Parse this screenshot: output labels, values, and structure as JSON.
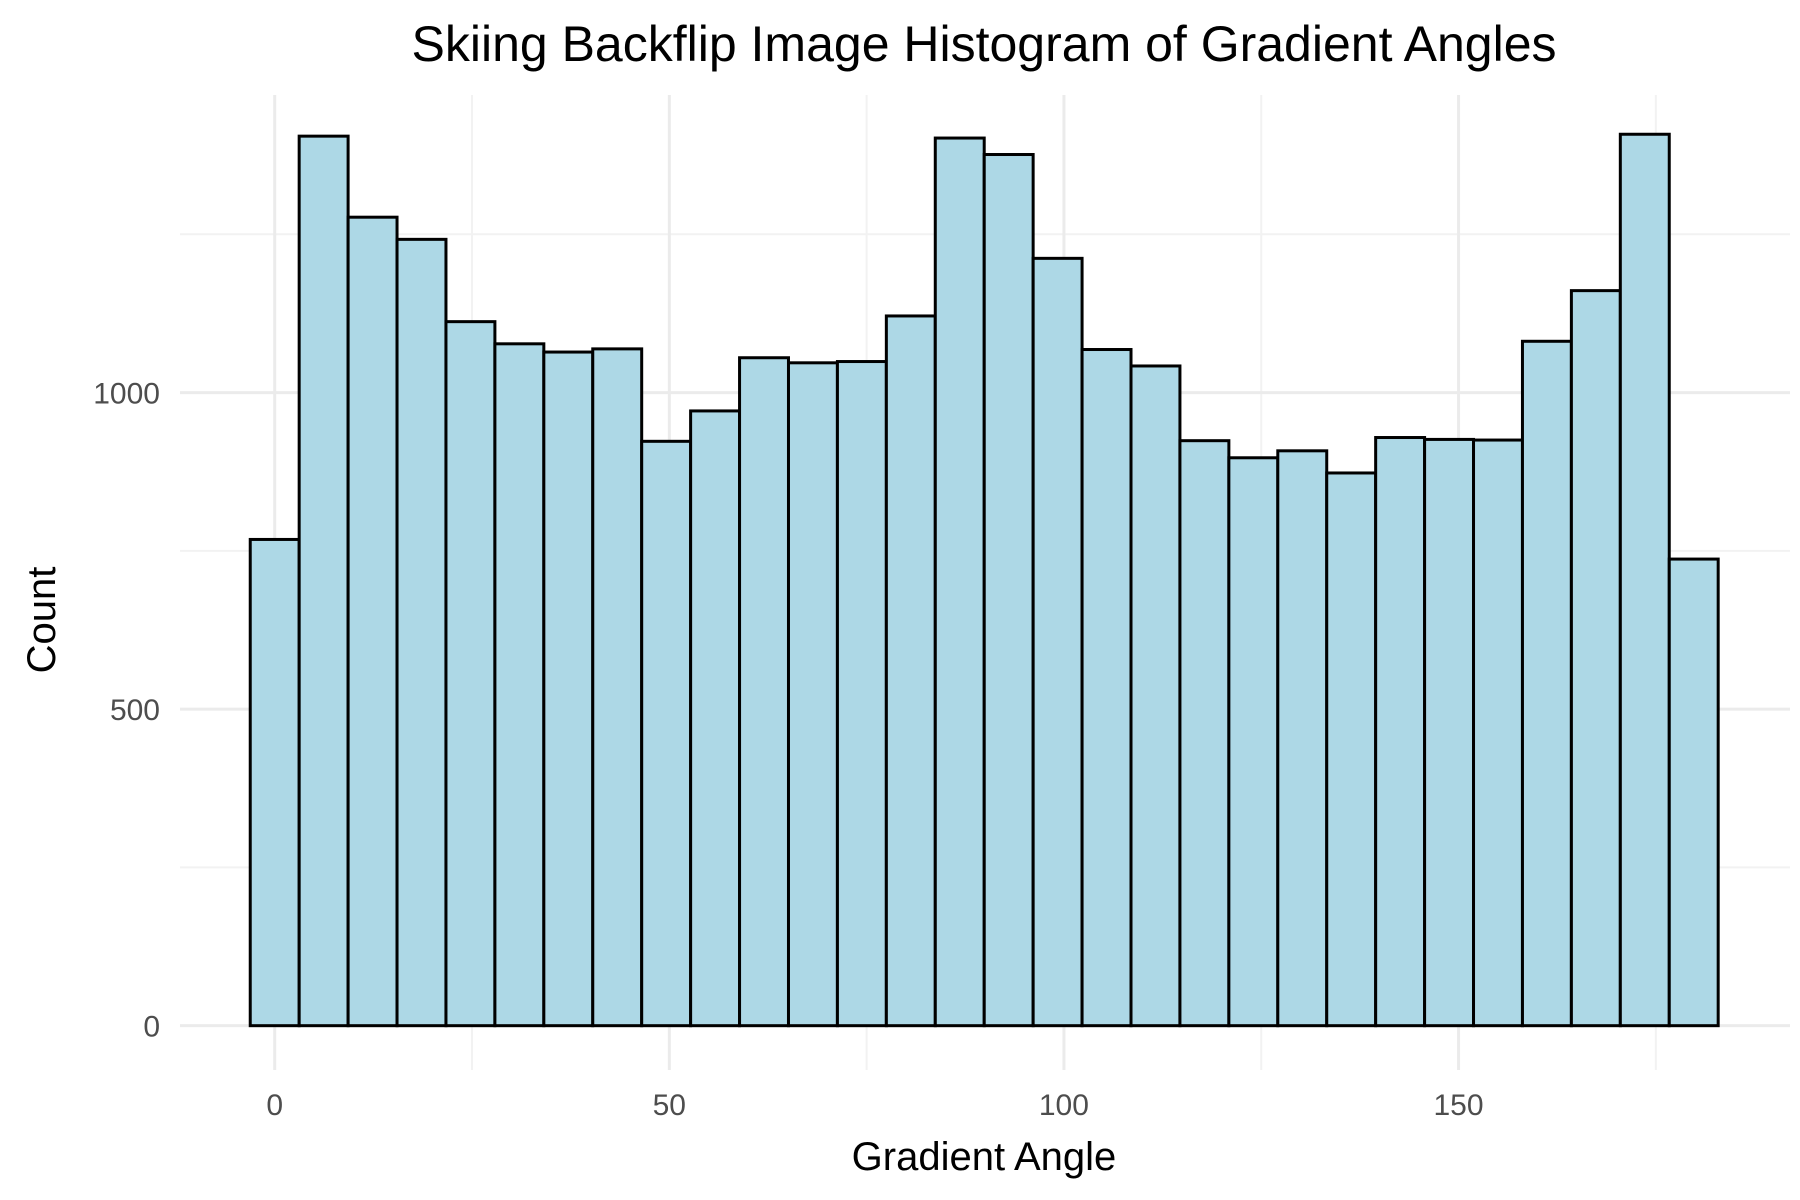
{
  "chart_data": {
    "type": "bar",
    "title": "Skiing Backflip Image Histogram of Gradient Angles",
    "xlabel": "Gradient Angle",
    "ylabel": "Count",
    "x_ticks": [
      0,
      50,
      100,
      150
    ],
    "y_ticks": [
      0,
      500,
      1000
    ],
    "xlim": [
      -12,
      192
    ],
    "ylim": [
      -70,
      1470
    ],
    "grid": true,
    "legend": "none",
    "bin_width": 6.2,
    "bars": [
      {
        "x0": -3.1,
        "x1": 3.1,
        "value": 768
      },
      {
        "x0": 3.1,
        "x1": 9.3,
        "value": 1405
      },
      {
        "x0": 9.3,
        "x1": 15.5,
        "value": 1277
      },
      {
        "x0": 15.5,
        "x1": 21.7,
        "value": 1242
      },
      {
        "x0": 21.7,
        "x1": 27.9,
        "value": 1112
      },
      {
        "x0": 27.9,
        "x1": 34.1,
        "value": 1077
      },
      {
        "x0": 34.1,
        "x1": 40.3,
        "value": 1064
      },
      {
        "x0": 40.3,
        "x1": 46.5,
        "value": 1069
      },
      {
        "x0": 46.5,
        "x1": 52.7,
        "value": 923
      },
      {
        "x0": 52.7,
        "x1": 58.9,
        "value": 971
      },
      {
        "x0": 58.9,
        "x1": 65.1,
        "value": 1055
      },
      {
        "x0": 65.1,
        "x1": 71.3,
        "value": 1047
      },
      {
        "x0": 71.3,
        "x1": 77.5,
        "value": 1049
      },
      {
        "x0": 77.5,
        "x1": 83.7,
        "value": 1121
      },
      {
        "x0": 83.7,
        "x1": 89.9,
        "value": 1402
      },
      {
        "x0": 89.9,
        "x1": 96.1,
        "value": 1376
      },
      {
        "x0": 96.1,
        "x1": 102.3,
        "value": 1212
      },
      {
        "x0": 102.3,
        "x1": 108.5,
        "value": 1068
      },
      {
        "x0": 108.5,
        "x1": 114.7,
        "value": 1042
      },
      {
        "x0": 114.7,
        "x1": 120.9,
        "value": 924
      },
      {
        "x0": 120.9,
        "x1": 127.1,
        "value": 897
      },
      {
        "x0": 127.1,
        "x1": 133.3,
        "value": 908
      },
      {
        "x0": 133.3,
        "x1": 139.5,
        "value": 873
      },
      {
        "x0": 139.5,
        "x1": 145.7,
        "value": 929
      },
      {
        "x0": 145.7,
        "x1": 151.9,
        "value": 926
      },
      {
        "x0": 151.9,
        "x1": 158.1,
        "value": 925
      },
      {
        "x0": 158.1,
        "x1": 164.3,
        "value": 1081
      },
      {
        "x0": 164.3,
        "x1": 170.5,
        "value": 1161
      },
      {
        "x0": 170.5,
        "x1": 176.7,
        "value": 1408
      },
      {
        "x0": 176.7,
        "x1": 182.9,
        "value": 737
      }
    ],
    "colors": {
      "bar_fill": "#add8e6",
      "bar_stroke": "#000000",
      "grid_major": "#ebebeb",
      "grid_minor": "#f2f2f2"
    }
  }
}
